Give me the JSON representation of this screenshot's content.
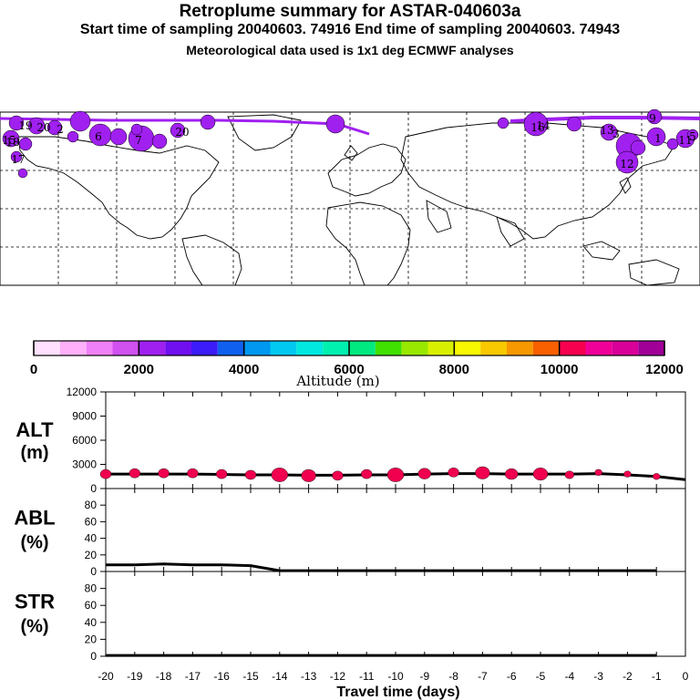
{
  "header": {
    "title": "Retroplume summary for ASTAR-040603a",
    "subtitle": "Start time of sampling 20040603. 74916     End time of sampling 20040603. 74943",
    "meteo": "Meteorological data used is 1x1 deg ECMWF analyses"
  },
  "map": {
    "plume_color": "#a020f0",
    "day_labels": [
      "19",
      "20",
      "6",
      "7",
      "2",
      "14",
      "3",
      "1",
      "16",
      "11",
      "12",
      "13",
      "9",
      "5",
      "15",
      "20",
      "18",
      "17"
    ]
  },
  "colorbar": {
    "label": "Altitude (m)",
    "tick_labels": [
      "0",
      "2000",
      "4000",
      "6000",
      "8000",
      "10000",
      "12000"
    ],
    "range": [
      0,
      12000
    ],
    "colors": [
      "#ffe0ff",
      "#ffb0f8",
      "#f080f8",
      "#d050f0",
      "#a020f0",
      "#7010f0",
      "#3c1cf8",
      "#1060f0",
      "#0098f0",
      "#00c8f0",
      "#00e8e0",
      "#00f0b0",
      "#00e880",
      "#40e000",
      "#98e800",
      "#d8f000",
      "#f8f800",
      "#f8c800",
      "#f89800",
      "#f86000",
      "#f80050",
      "#f00098",
      "#d80098",
      "#a00098"
    ]
  },
  "chart_data": [
    {
      "type": "line",
      "panel": "ALT",
      "ylabel": "ALT\n(m)",
      "ylabel_lines": [
        "ALT",
        "(m)"
      ],
      "ylim": [
        0,
        12000
      ],
      "yticks": [
        "0",
        "3000",
        "6000",
        "9000",
        "12000"
      ],
      "x": [
        -20,
        -19,
        -18,
        -17,
        -16,
        -15,
        -14,
        -13,
        -12,
        -11,
        -10,
        -9,
        -8,
        -7,
        -6,
        -5,
        -4,
        -3,
        -2,
        -1,
        0
      ],
      "series": [
        {
          "name": "mean altitude",
          "values": [
            1800,
            1800,
            1800,
            1800,
            1750,
            1700,
            1700,
            1650,
            1650,
            1700,
            1700,
            1800,
            1850,
            1850,
            1800,
            1800,
            1800,
            1850,
            1700,
            1500,
            1100
          ]
        }
      ],
      "markers": {
        "x": [
          -20,
          -19,
          -18,
          -17,
          -16,
          -15,
          -14,
          -13,
          -12,
          -11,
          -10,
          -9,
          -8,
          -7,
          -6,
          -5,
          -4,
          -3,
          -2,
          -1
        ],
        "y": [
          1800,
          1900,
          1900,
          1900,
          1800,
          1700,
          1700,
          1600,
          1600,
          1800,
          1700,
          1850,
          2000,
          1950,
          1800,
          1800,
          1700,
          2000,
          1800,
          1500
        ],
        "size": [
          6,
          6,
          6,
          6,
          6,
          6,
          9,
          8,
          6,
          6,
          9,
          7,
          6,
          8,
          7,
          8,
          5,
          4,
          4,
          4
        ]
      }
    },
    {
      "type": "line",
      "panel": "ABL",
      "ylabel": "ABL\n(%)",
      "ylabel_lines": [
        "ABL",
        "(%)"
      ],
      "ylim": [
        0,
        100
      ],
      "yticks": [
        "0",
        "20",
        "40",
        "60",
        "80"
      ],
      "x": [
        -20,
        -19,
        -18,
        -17,
        -16,
        -15,
        -14,
        -13,
        -12,
        -11,
        -10,
        -9,
        -8,
        -7,
        -6,
        -5,
        -4,
        -3,
        -2,
        -1
      ],
      "series": [
        {
          "name": "fraction in ABL",
          "values": [
            8,
            8,
            9,
            8,
            8,
            7,
            1,
            1,
            1,
            1,
            1,
            1,
            1,
            1,
            1,
            1,
            1,
            1,
            1,
            1
          ]
        }
      ]
    },
    {
      "type": "line",
      "panel": "STR",
      "ylabel": "STR\n(%)",
      "ylabel_lines": [
        "STR",
        "(%)"
      ],
      "ylim": [
        0,
        100
      ],
      "yticks": [
        "0",
        "20",
        "40",
        "60",
        "80"
      ],
      "x": [
        -20,
        -19,
        -18,
        -17,
        -16,
        -15,
        -14,
        -13,
        -12,
        -11,
        -10,
        -9,
        -8,
        -7,
        -6,
        -5,
        -4,
        -3,
        -2,
        -1
      ],
      "series": [
        {
          "name": "fraction in stratosphere",
          "values": [
            1,
            1,
            1,
            1,
            1,
            1,
            1,
            1,
            1,
            1,
            1,
            1,
            1,
            1,
            1,
            1,
            1,
            1,
            1,
            1
          ]
        }
      ]
    }
  ],
  "x_axis": {
    "label": "Travel time (days)",
    "tick_labels": [
      "-20",
      "-19",
      "-18",
      "-17",
      "-16",
      "-15",
      "-14",
      "-13",
      "-12",
      "-11",
      "-10",
      "-9",
      "-8",
      "-7",
      "-6",
      "-5",
      "-4",
      "-3",
      "-2",
      "-1",
      "0"
    ],
    "range": [
      -20,
      0
    ]
  }
}
